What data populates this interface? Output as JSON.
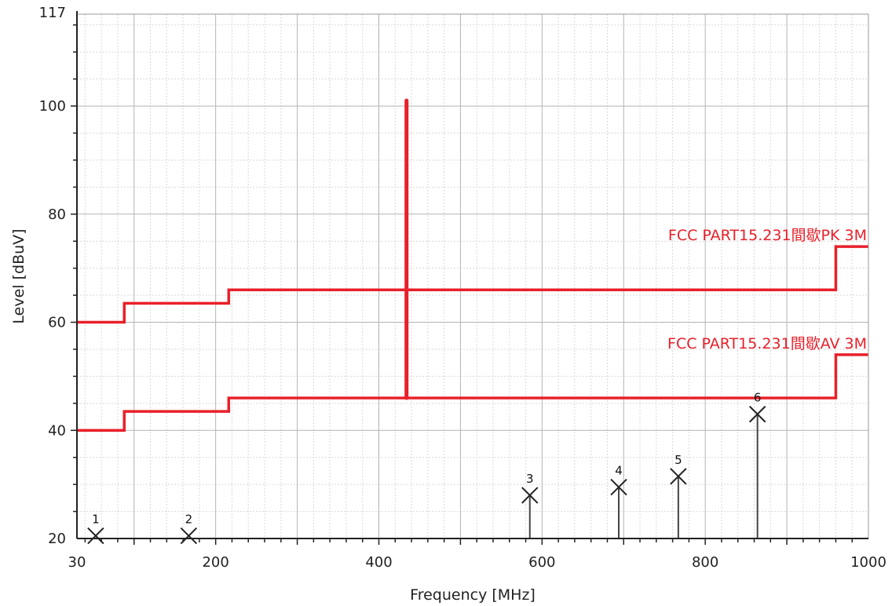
{
  "chart_data": {
    "type": "line",
    "xlabel": "Frequency [MHz]",
    "ylabel": "Level [dBuV]",
    "xlim": [
      30,
      1000
    ],
    "ylim": [
      20,
      117
    ],
    "x_tick_labels": [
      {
        "value": 30,
        "label": "30"
      },
      {
        "value": 200,
        "label": "200"
      },
      {
        "value": 400,
        "label": "400"
      },
      {
        "value": 600,
        "label": "600"
      },
      {
        "value": 800,
        "label": "800"
      },
      {
        "value": 1000,
        "label": "1000"
      }
    ],
    "y_tick_labels": [
      {
        "value": 20,
        "label": "20"
      },
      {
        "value": 40,
        "label": "40"
      },
      {
        "value": 60,
        "label": "60"
      },
      {
        "value": 80,
        "label": "80"
      },
      {
        "value": 100,
        "label": "100"
      },
      {
        "value": 117,
        "label": "117"
      }
    ],
    "grid": true,
    "limit_lines": [
      {
        "name": "FCC PART15.231間歇PK 3M",
        "color": "#e8202a",
        "points": [
          [
            30,
            60
          ],
          [
            88,
            60
          ],
          [
            88,
            63.5
          ],
          [
            216,
            63.5
          ],
          [
            216,
            66
          ],
          [
            960,
            66
          ],
          [
            960,
            74
          ],
          [
            1000,
            74
          ]
        ]
      },
      {
        "name": "FCC PART15.231間歇AV 3M",
        "color": "#e8202a",
        "points": [
          [
            30,
            40
          ],
          [
            88,
            40
          ],
          [
            88,
            43.5
          ],
          [
            216,
            43.5
          ],
          [
            216,
            46
          ],
          [
            960,
            46
          ],
          [
            960,
            54
          ],
          [
            1000,
            54
          ]
        ]
      }
    ],
    "signal": {
      "color": "#e8202a",
      "x": 433.9,
      "y_bottom": 46,
      "y_top": 101
    },
    "markers": [
      {
        "label": "1",
        "x": 53,
        "y": 20.5
      },
      {
        "label": "2",
        "x": 167,
        "y": 20.5
      },
      {
        "label": "3",
        "x": 585,
        "y": 28
      },
      {
        "label": "4",
        "x": 694,
        "y": 29.5
      },
      {
        "label": "5",
        "x": 767,
        "y": 31.5
      },
      {
        "label": "6",
        "x": 864,
        "y": 43
      }
    ]
  }
}
